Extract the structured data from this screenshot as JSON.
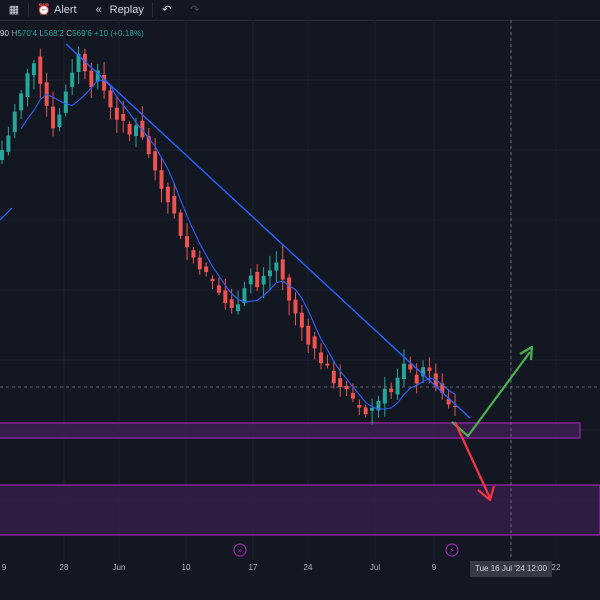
{
  "toolbar": {
    "alert_label": "Alert",
    "replay_label": "Replay"
  },
  "ohlc": {
    "open_frag": "90",
    "high_label": "H",
    "high": "570'4",
    "low_label": "L",
    "low": "568'2",
    "close_label": "C",
    "close": "569'6",
    "change": "+10 (+0.18%)"
  },
  "xaxis": {
    "ticks": [
      "9",
      "28",
      "Jun",
      "10",
      "17",
      "24",
      "Jul",
      "9",
      "22"
    ],
    "crosshair_label": "Tue 16 Jul '24   12:00"
  },
  "colors": {
    "background": "#131722",
    "up": "#26a69a",
    "down": "#ef5350",
    "moving_average": "#2962ff",
    "trendline": "#2962ff",
    "zone_fill": "#3b1f4f",
    "zone_border": "#9c27b0",
    "bull_arrow": "#4caf50",
    "bear_arrow": "#f23645"
  },
  "chart_data": {
    "type": "candlestick",
    "moving_average": true,
    "crosshair": true,
    "zones": [
      {
        "name": "upper-zone",
        "range": [
          "support band"
        ]
      },
      {
        "name": "lower-zone",
        "range": [
          "lower support band"
        ]
      }
    ],
    "close_profile": [
      560,
      566,
      575,
      582,
      590,
      596,
      588,
      578,
      570,
      574,
      584,
      592,
      598,
      593,
      587,
      590,
      584,
      578,
      573,
      570,
      566,
      571,
      566,
      558,
      552,
      546,
      541,
      534,
      527,
      521,
      517,
      514,
      510,
      507,
      503,
      499,
      496,
      500,
      506,
      510,
      505,
      509,
      512,
      515,
      508,
      500,
      494,
      489,
      484,
      480,
      476,
      472,
      468,
      466,
      463,
      459,
      457,
      455,
      457,
      460,
      466,
      463,
      468,
      473,
      471,
      468,
      474,
      470,
      466,
      461,
      458,
      456
    ]
  }
}
